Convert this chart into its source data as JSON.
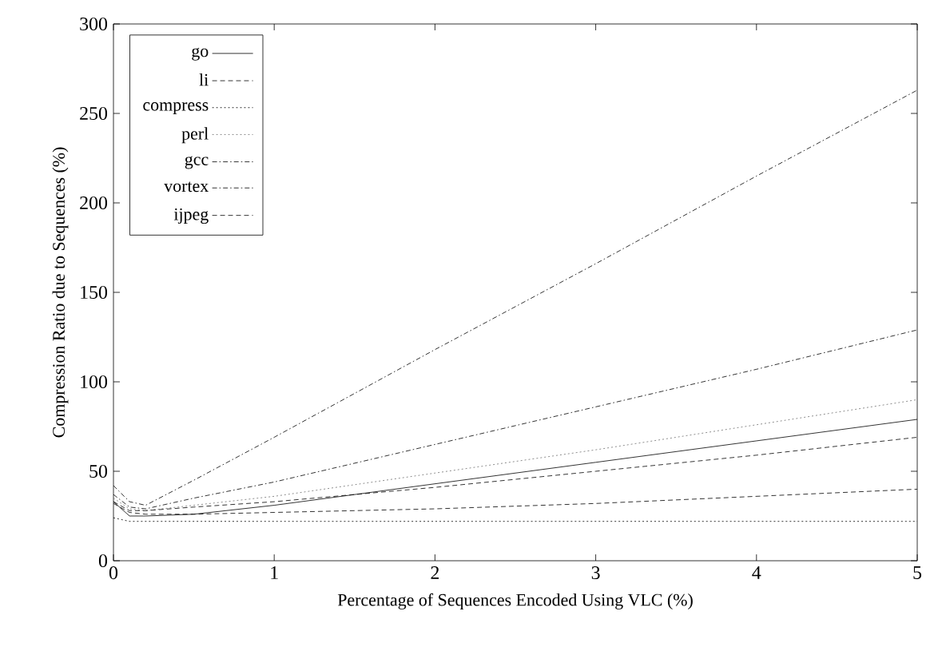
{
  "chart_data": {
    "type": "line",
    "xlabel": "Percentage of Sequences Encoded Using VLC (%)",
    "ylabel": "Compression Ratio due to Sequences (%)",
    "xlim": [
      0,
      5
    ],
    "ylim": [
      0,
      300
    ],
    "xticks": [
      0,
      1,
      2,
      3,
      4,
      5
    ],
    "yticks": [
      0,
      50,
      100,
      150,
      200,
      250,
      300
    ],
    "x": [
      0,
      0.1,
      0.2,
      0.5,
      1,
      2,
      3,
      4,
      5
    ],
    "series": [
      {
        "name": "go",
        "color": "#000000",
        "line_style": "solid",
        "values": [
          33,
          25,
          25,
          26,
          31,
          43,
          55,
          67,
          79
        ]
      },
      {
        "name": "li",
        "color": "#000000",
        "line_style": "dashed",
        "values": [
          32,
          27,
          26,
          26,
          27,
          29,
          32,
          36,
          40
        ]
      },
      {
        "name": "compress",
        "color": "#000000",
        "line_style": "dotted",
        "values": [
          24,
          22,
          22,
          22,
          22,
          22,
          22,
          22,
          22
        ]
      },
      {
        "name": "perl",
        "color": "#707070",
        "line_style": "dotted",
        "values": [
          35,
          29,
          28,
          31,
          36,
          49,
          62,
          76,
          90
        ]
      },
      {
        "name": "gcc",
        "color": "#000000",
        "line_style": "dashdot",
        "values": [
          42,
          33,
          31,
          45,
          69,
          118,
          166,
          215,
          263
        ]
      },
      {
        "name": "vortex",
        "color": "#000000",
        "line_style": "dashdot",
        "values": [
          37,
          30,
          29,
          35,
          44,
          65,
          86,
          107,
          129
        ]
      },
      {
        "name": "ijpeg",
        "color": "#000000",
        "line_style": "dashed",
        "values": [
          33,
          28,
          28,
          30,
          33,
          41,
          50,
          59,
          69
        ]
      }
    ],
    "legend": "top left",
    "grid": false,
    "marker": "none"
  }
}
